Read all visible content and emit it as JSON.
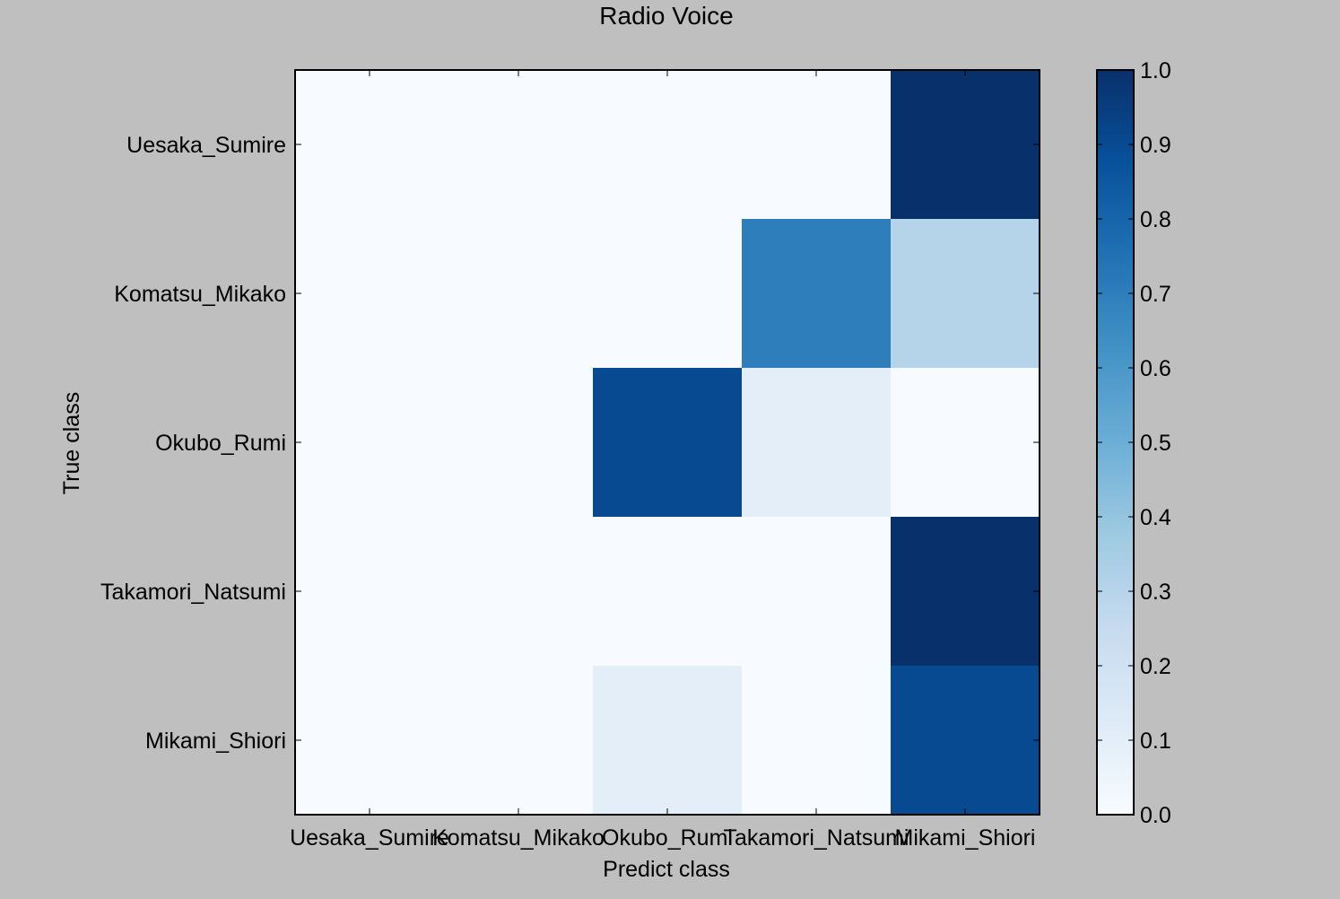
{
  "chart_data": {
    "type": "heatmap",
    "title": "Radio Voice",
    "xlabel": "Predict class",
    "ylabel": "True class",
    "x_categories": [
      "Uesaka_Sumire",
      "Komatsu_Mikako",
      "Okubo_Rumi",
      "Takamori_Natsumi",
      "Mikami_Shiori"
    ],
    "y_categories": [
      "Uesaka_Sumire",
      "Komatsu_Mikako",
      "Okubo_Rumi",
      "Takamori_Natsumi",
      "Mikami_Shiori"
    ],
    "values": [
      [
        0.0,
        0.0,
        0.0,
        0.0,
        1.0
      ],
      [
        0.0,
        0.0,
        0.0,
        0.7,
        0.3
      ],
      [
        0.0,
        0.0,
        0.9,
        0.1,
        0.0
      ],
      [
        0.0,
        0.0,
        0.0,
        0.0,
        1.0
      ],
      [
        0.0,
        0.0,
        0.1,
        0.0,
        0.9
      ]
    ],
    "colormap": "Blues",
    "colorbar": {
      "range": [
        0.0,
        1.0
      ],
      "ticks": [
        "0.0",
        "0.1",
        "0.2",
        "0.3",
        "0.4",
        "0.5",
        "0.6",
        "0.7",
        "0.8",
        "0.9",
        "1.0"
      ]
    },
    "grid": false
  }
}
